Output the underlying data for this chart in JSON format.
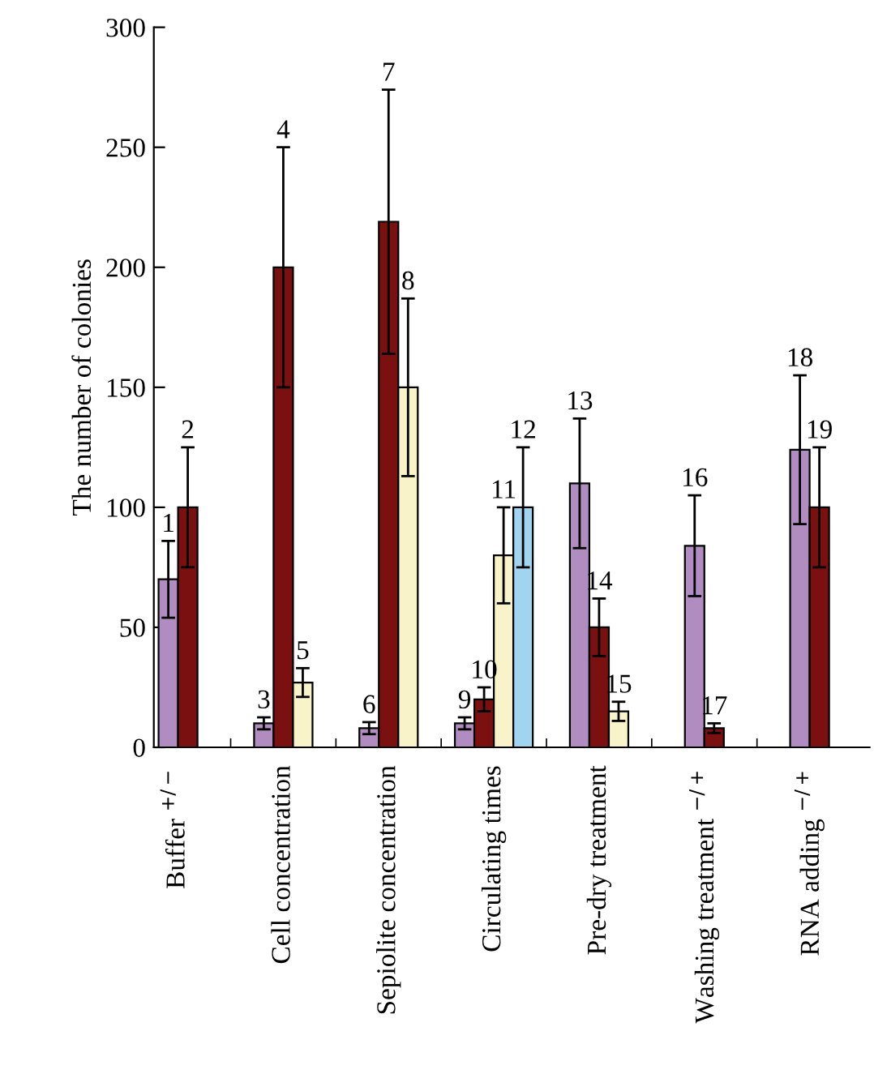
{
  "chart_data": {
    "type": "bar",
    "ylabel": "The number of colonies",
    "categories": [
      "Buffer $^{+/−}$",
      "Cell concentration",
      "Sepiolite concentration",
      "Circulating times",
      "Pre-dry treatment",
      "Washing treatment $^{−/+}$",
      "RNA adding $^{−/+}$"
    ],
    "series": [
      {
        "color": "#b08cc0",
        "values": [
          70,
          10,
          8,
          10,
          110,
          84,
          124
        ],
        "errors": [
          16,
          2.5,
          2.5,
          2.5,
          27,
          21,
          31
        ]
      },
      {
        "color": "#7a1010",
        "values": [
          100,
          200,
          219,
          20,
          50,
          8,
          100
        ],
        "errors": [
          25,
          50,
          55,
          5,
          12,
          2,
          25
        ]
      },
      {
        "color": "#f8f3c8",
        "values": [
          null,
          27,
          150,
          80,
          15,
          null,
          null
        ],
        "errors": [
          null,
          6,
          37,
          20,
          4,
          null,
          null
        ]
      },
      {
        "color": "#a0d4f0",
        "values": [
          null,
          null,
          null,
          100,
          null,
          null,
          null
        ],
        "errors": [
          null,
          null,
          null,
          25,
          null,
          null,
          null
        ]
      }
    ],
    "annotations": [
      "1",
      "2",
      "3",
      "4",
      "5",
      "6",
      "7",
      "8",
      "9",
      "10",
      "11",
      "12",
      "13",
      "14",
      "15",
      "16",
      "17",
      "18",
      "19"
    ],
    "ylim": [
      0,
      300
    ],
    "yticks": [
      0,
      50,
      100,
      150,
      200,
      250,
      300
    ],
    "grid": false,
    "legend": false
  }
}
